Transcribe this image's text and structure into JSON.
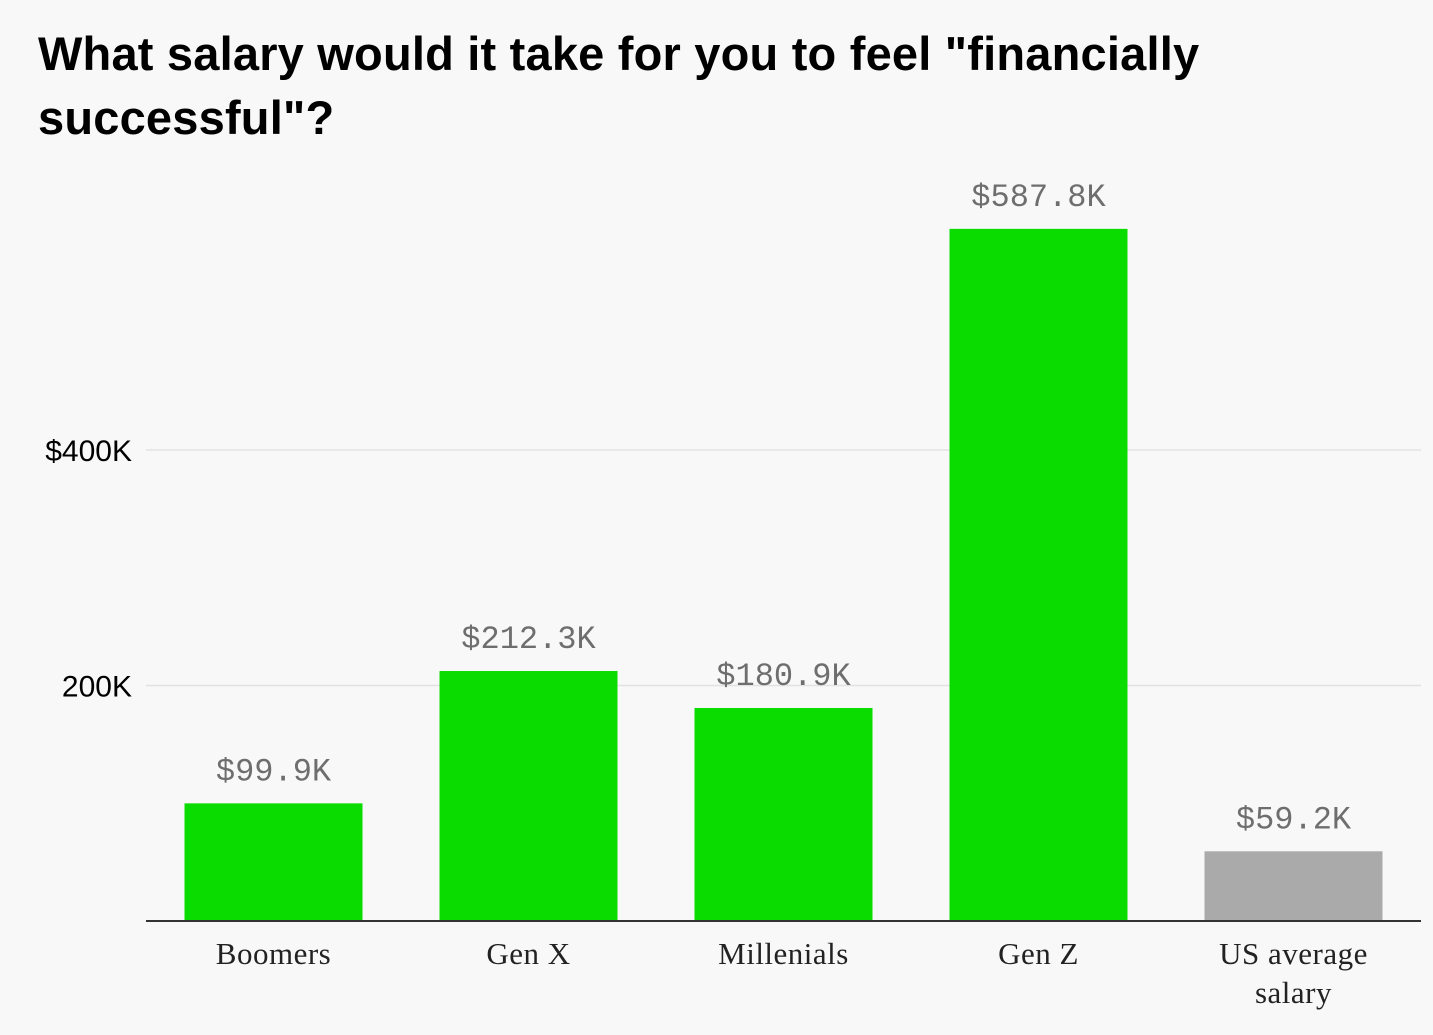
{
  "chart_data": {
    "type": "bar",
    "title": "What salary would it take for you to feel \"financially successful\"?",
    "categories": [
      "Boomers",
      "Gen X",
      "Millenials",
      "Gen Z",
      "US average salary"
    ],
    "values": [
      99.9,
      212.3,
      180.9,
      587.8,
      59.2
    ],
    "value_labels": [
      "$99.9K",
      "$212.3K",
      "$180.9K",
      "$587.8K",
      "$59.2K"
    ],
    "value_unit": "thousand USD",
    "ylim": [
      0,
      620
    ],
    "yticks": [
      {
        "value": 200,
        "label": "200K"
      },
      {
        "value": 400,
        "label": "$400K"
      }
    ],
    "grid": true,
    "legend": "none",
    "colors": [
      "#0adc00",
      "#0adc00",
      "#0adc00",
      "#0adc00",
      "#aaaaaa"
    ],
    "xlabel": "",
    "ylabel": ""
  }
}
